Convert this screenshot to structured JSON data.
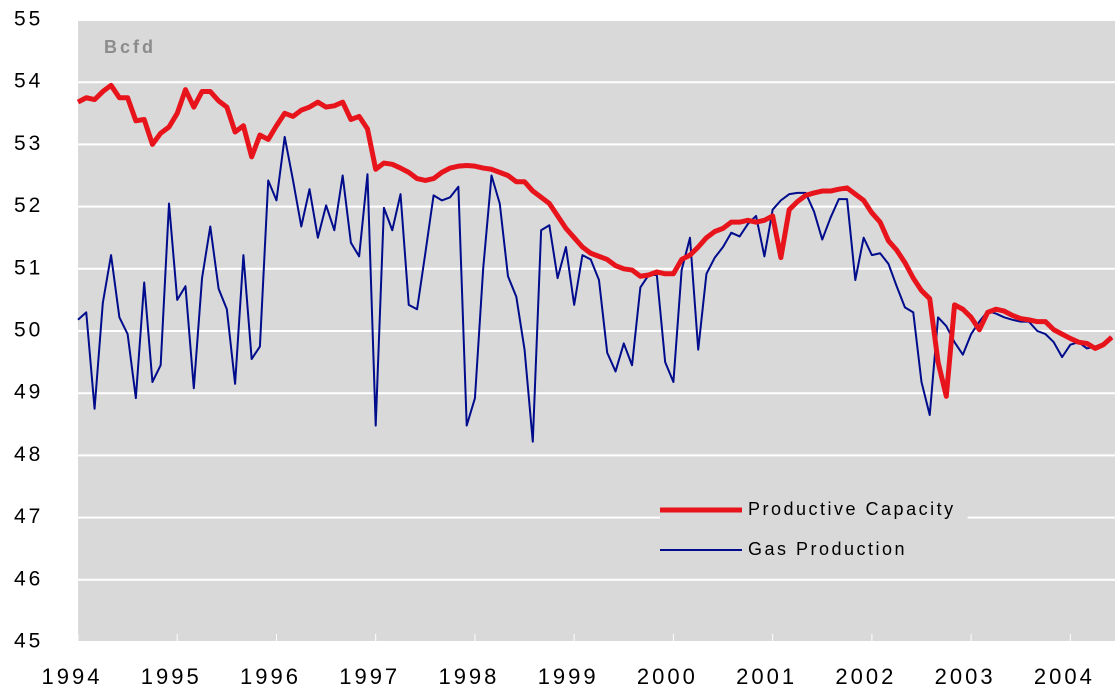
{
  "chart_data": {
    "type": "line",
    "annotation": "Bcfd",
    "x": [
      1994,
      1994.083,
      1994.167,
      1994.25,
      1994.333,
      1994.417,
      1994.5,
      1994.583,
      1994.667,
      1994.75,
      1994.833,
      1994.917,
      1995,
      1995.083,
      1995.167,
      1995.25,
      1995.333,
      1995.417,
      1995.5,
      1995.583,
      1995.667,
      1995.75,
      1995.833,
      1995.917,
      1996,
      1996.083,
      1996.167,
      1996.25,
      1996.333,
      1996.417,
      1996.5,
      1996.583,
      1996.667,
      1996.75,
      1996.833,
      1996.917,
      1997,
      1997.083,
      1997.167,
      1997.25,
      1997.333,
      1997.417,
      1997.5,
      1997.583,
      1997.667,
      1997.75,
      1997.833,
      1997.917,
      1998,
      1998.083,
      1998.167,
      1998.25,
      1998.333,
      1998.417,
      1998.5,
      1998.583,
      1998.667,
      1998.75,
      1998.833,
      1998.917,
      1999,
      1999.083,
      1999.167,
      1999.25,
      1999.333,
      1999.417,
      1999.5,
      1999.583,
      1999.667,
      1999.75,
      1999.833,
      1999.917,
      2000,
      2000.083,
      2000.167,
      2000.25,
      2000.333,
      2000.417,
      2000.5,
      2000.583,
      2000.667,
      2000.75,
      2000.833,
      2000.917,
      2001,
      2001.083,
      2001.167,
      2001.25,
      2001.333,
      2001.417,
      2001.5,
      2001.583,
      2001.667,
      2001.75,
      2001.833,
      2001.917,
      2002,
      2002.083,
      2002.167,
      2002.25,
      2002.333,
      2002.417,
      2002.5,
      2002.583,
      2002.667,
      2002.75,
      2002.833,
      2002.917,
      2003,
      2003.083,
      2003.167,
      2003.25,
      2003.333,
      2003.417,
      2003.5,
      2003.583,
      2003.667,
      2003.75,
      2003.833,
      2003.917,
      2004,
      2004.083,
      2004.167,
      2004.25,
      2004.333,
      2004.417
    ],
    "series": [
      {
        "name": "Productive Capacity",
        "color": "#e8141c",
        "width": 5,
        "values": [
          53.68,
          53.75,
          53.72,
          53.85,
          53.95,
          53.75,
          53.75,
          53.38,
          53.4,
          53.0,
          53.18,
          53.28,
          53.5,
          53.88,
          53.6,
          53.85,
          53.85,
          53.7,
          53.6,
          53.2,
          53.3,
          52.8,
          53.15,
          53.08,
          53.3,
          53.5,
          53.45,
          53.55,
          53.6,
          53.68,
          53.6,
          53.62,
          53.68,
          53.4,
          53.45,
          53.25,
          52.6,
          52.7,
          52.68,
          52.62,
          52.55,
          52.45,
          52.42,
          52.45,
          52.55,
          52.62,
          52.65,
          52.66,
          52.65,
          52.62,
          52.6,
          52.55,
          52.5,
          52.4,
          52.4,
          52.25,
          52.15,
          52.05,
          51.85,
          51.65,
          51.5,
          51.35,
          51.25,
          51.2,
          51.15,
          51.05,
          51.0,
          50.98,
          50.88,
          50.9,
          50.95,
          50.92,
          50.92,
          51.15,
          51.22,
          51.35,
          51.5,
          51.6,
          51.65,
          51.75,
          51.75,
          51.78,
          51.75,
          51.78,
          51.85,
          51.18,
          51.95,
          52.08,
          52.18,
          52.22,
          52.25,
          52.25,
          52.28,
          52.3,
          52.2,
          52.1,
          51.9,
          51.75,
          51.45,
          51.3,
          51.1,
          50.85,
          50.65,
          50.52,
          49.5,
          48.95,
          50.42,
          50.35,
          50.22,
          50.02,
          50.3,
          50.35,
          50.32,
          50.25,
          50.2,
          50.18,
          50.15,
          50.15,
          50.02,
          49.95,
          49.88,
          49.82,
          49.8,
          49.72,
          49.78,
          49.9
        ]
      },
      {
        "name": "Gas Production",
        "color": "#000c8c",
        "width": 2,
        "values": [
          50.18,
          50.3,
          48.75,
          50.45,
          51.22,
          50.22,
          49.95,
          48.92,
          50.78,
          49.18,
          49.45,
          52.05,
          50.5,
          50.72,
          49.08,
          50.85,
          51.68,
          50.68,
          50.35,
          49.15,
          51.22,
          49.55,
          49.75,
          52.42,
          52.1,
          53.12,
          52.42,
          51.68,
          52.28,
          51.5,
          52.02,
          51.62,
          52.5,
          51.42,
          51.2,
          52.52,
          48.48,
          51.98,
          51.62,
          52.2,
          50.42,
          50.35,
          51.25,
          52.18,
          52.1,
          52.15,
          52.32,
          48.48,
          48.92,
          51.0,
          52.5,
          52.05,
          50.88,
          50.55,
          49.7,
          48.22,
          51.62,
          51.7,
          50.85,
          51.35,
          50.42,
          51.22,
          51.15,
          50.82,
          49.65,
          49.35,
          49.8,
          49.45,
          50.7,
          50.9,
          50.9,
          49.5,
          49.18,
          50.98,
          51.5,
          49.7,
          50.92,
          51.18,
          51.35,
          51.58,
          51.52,
          51.72,
          51.85,
          51.2,
          51.95,
          52.1,
          52.2,
          52.22,
          52.22,
          51.92,
          51.47,
          51.82,
          52.12,
          52.12,
          50.82,
          51.5,
          51.22,
          51.25,
          51.08,
          50.72,
          50.38,
          50.3,
          49.18,
          48.65,
          50.22,
          50.08,
          49.82,
          49.62,
          49.95,
          50.15,
          50.32,
          50.28,
          50.22,
          50.18,
          50.15,
          50.15,
          50.0,
          49.95,
          49.82,
          49.58,
          49.78,
          49.82,
          49.72,
          49.75,
          49.8,
          49.9
        ]
      }
    ],
    "xlim": [
      1994,
      2004.45
    ],
    "xticks": [
      1994,
      1995,
      1996,
      1997,
      1998,
      1999,
      2000,
      2001,
      2002,
      2003,
      2004
    ],
    "ylim": [
      45,
      55
    ],
    "yticks": [
      45,
      46,
      47,
      48,
      49,
      50,
      51,
      52,
      53,
      54,
      55
    ],
    "grid": true,
    "legend": "lower right",
    "background": "#d9d9d9"
  }
}
